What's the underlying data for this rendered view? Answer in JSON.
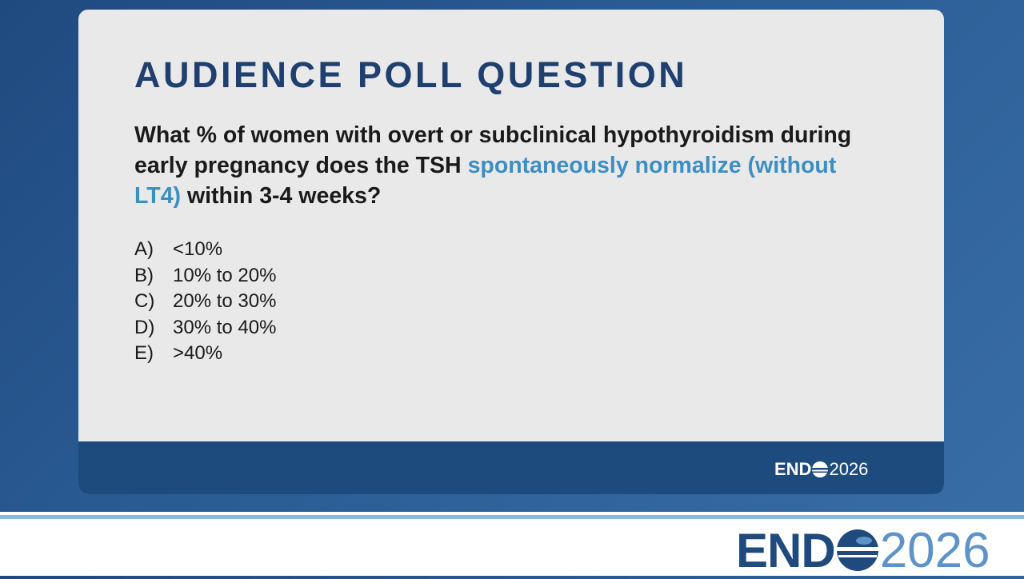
{
  "slide": {
    "title": "AUDIENCE POLL QUESTION",
    "question": [
      "What % of women with overt or subclinical hypothyroidism during early pregnancy does the TSH",
      "spontaneously normalize (without LT4)",
      "within 3-4 weeks?"
    ],
    "options": [
      {
        "letter": "A)",
        "text": "<10%"
      },
      {
        "letter": "B)",
        "text": "10% to 20%"
      },
      {
        "letter": "C)",
        "text": "20% to 30%"
      },
      {
        "letter": "D)",
        "text": "30% to 40%"
      },
      {
        "letter": "E)",
        "text": ">40%"
      }
    ],
    "footer_logo": {
      "left": "END",
      "right": "2026"
    },
    "logo": {
      "left": "END",
      "right": "2026"
    }
  }
}
